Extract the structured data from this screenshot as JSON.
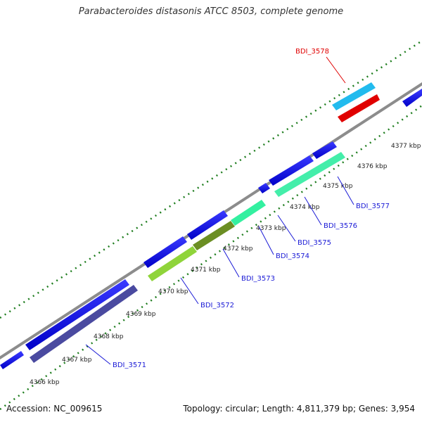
{
  "title": "Parabacteroides distasonis ATCC 8503, complete genome",
  "footer": {
    "accession": "Accession: NC_009615",
    "summary": "Topology: circular; Length: 4,811,379 bp; Genes: 3,954"
  },
  "colors": {
    "backbone": "#8c8c8c",
    "tick_dots": "#1e7d1e",
    "gene_blue": "#1010e6",
    "label_blue": "#1a1ad6",
    "label_red": "#e00000"
  },
  "scale_labels": [
    "4366 kbp",
    "4367 kbp",
    "4368 kbp",
    "4369 kbp",
    "4370 kbp",
    "4371 kbp",
    "4372 kbp",
    "4373 kbp",
    "4374 kbp",
    "4375 kbp",
    "4376 kbp",
    "4377 kbp"
  ],
  "gene_labels": [
    "BDI_3571",
    "BDI_3572",
    "BDI_3573",
    "BDI_3574",
    "BDI_3575",
    "BDI_3576",
    "BDI_3577",
    "BDI_3578"
  ]
}
